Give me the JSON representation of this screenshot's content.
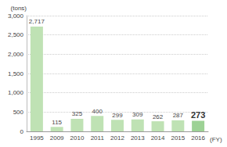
{
  "chart_data": {
    "type": "bar",
    "y_label": "(tons)",
    "x_label": "(FY)",
    "categories": [
      "1995",
      "2009",
      "2010",
      "2011",
      "2012",
      "2013",
      "2014",
      "2015",
      "2016"
    ],
    "values": [
      2717,
      115,
      325,
      400,
      299,
      309,
      262,
      287,
      273
    ],
    "value_labels": [
      "2,717",
      "115",
      "325",
      "400",
      "299",
      "309",
      "262",
      "287",
      "273"
    ],
    "colors": [
      "#bfe2b4",
      "#bfe2b4",
      "#bfe2b4",
      "#bfe2b4",
      "#bfe2b4",
      "#bfe2b4",
      "#bfe2b4",
      "#bfe2b4",
      "#9dd295"
    ],
    "ylim": [
      0,
      3000
    ],
    "yticks": [
      0,
      500,
      {
        "value": 1000,
        "label": "1,000"
      },
      {
        "value": 1500,
        "label": "1,500"
      },
      {
        "value": 2000,
        "label": "2,000"
      },
      {
        "value": 2500,
        "label": "2,500"
      },
      {
        "value": 3000,
        "label": "3,000"
      }
    ],
    "grid": true,
    "data_labels": true
  }
}
